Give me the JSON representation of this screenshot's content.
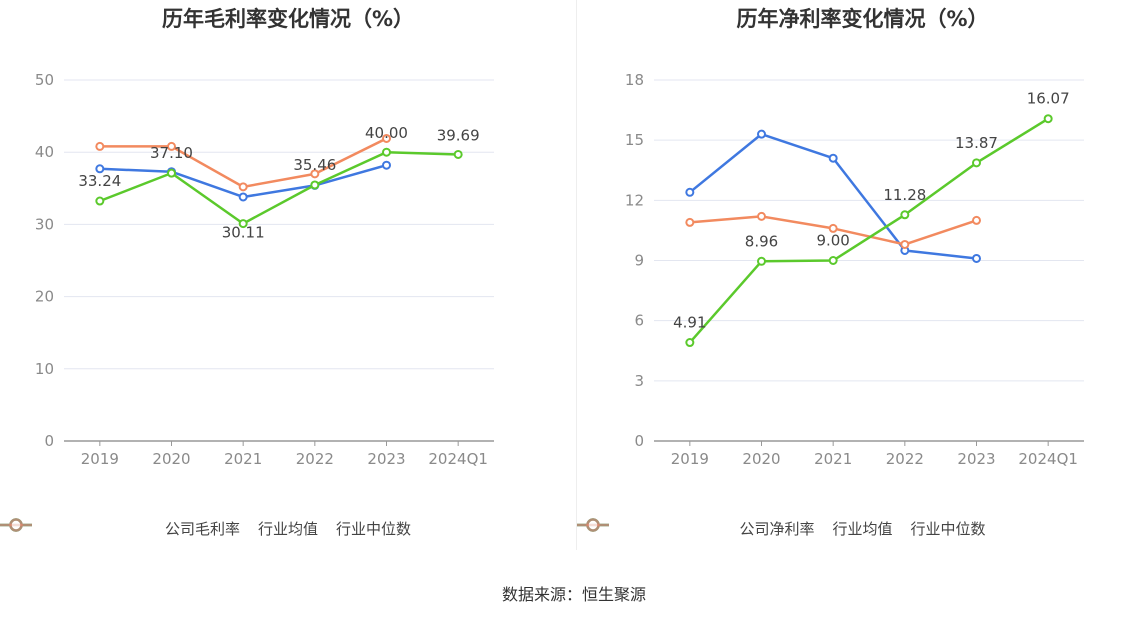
{
  "chart_data": [
    {
      "type": "line",
      "title": "历年毛利率变化情况（%）",
      "xlabel": "",
      "ylabel": "",
      "categories": [
        "2019",
        "2020",
        "2021",
        "2022",
        "2023",
        "2024Q1"
      ],
      "ylim": [
        0,
        50
      ],
      "yticks": [
        0,
        10,
        20,
        30,
        40,
        50
      ],
      "grid": true,
      "legend_position": "bottom-center",
      "series": [
        {
          "name": "公司毛利率",
          "color": "#5bc92c",
          "values": [
            33.24,
            37.1,
            30.11,
            35.46,
            40.0,
            39.69
          ],
          "labels": [
            "33.24",
            "37.10",
            "30.11",
            "35.46",
            "40.00",
            "39.69"
          ]
        },
        {
          "name": "行业均值",
          "color": "#3f78e0",
          "values": [
            37.7,
            37.3,
            33.8,
            35.4,
            38.2,
            null
          ]
        },
        {
          "name": "行业中位数",
          "color": "#f28a5f",
          "values": [
            40.8,
            40.8,
            35.2,
            37.0,
            41.9,
            null
          ]
        }
      ]
    },
    {
      "type": "line",
      "title": "历年净利率变化情况（%）",
      "xlabel": "",
      "ylabel": "",
      "categories": [
        "2019",
        "2020",
        "2021",
        "2022",
        "2023",
        "2024Q1"
      ],
      "ylim": [
        0,
        18
      ],
      "yticks": [
        0,
        3,
        6,
        9,
        12,
        15,
        18
      ],
      "grid": true,
      "legend_position": "bottom-center",
      "series": [
        {
          "name": "公司净利率",
          "color": "#5bc92c",
          "values": [
            4.91,
            8.96,
            9.0,
            11.28,
            13.87,
            16.07
          ],
          "labels": [
            "4.91",
            "8.96",
            "9.00",
            "11.28",
            "13.87",
            "16.07"
          ]
        },
        {
          "name": "行业均值",
          "color": "#3f78e0",
          "values": [
            12.4,
            15.3,
            14.1,
            9.5,
            9.1,
            null
          ]
        },
        {
          "name": "行业中位数",
          "color": "#f28a5f",
          "values": [
            10.9,
            11.2,
            10.6,
            9.8,
            11.0,
            null
          ]
        }
      ]
    }
  ],
  "source_note": "数据来源：恒生聚源"
}
